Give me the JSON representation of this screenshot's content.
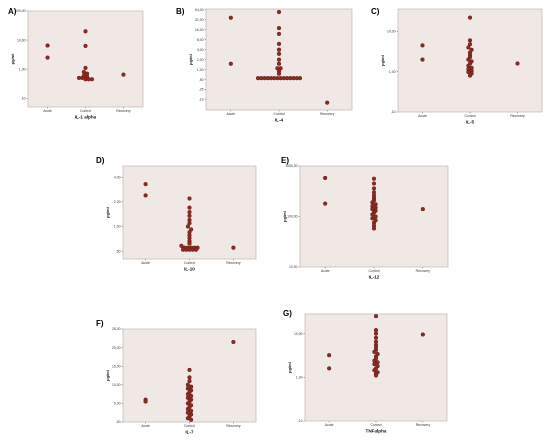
{
  "chart_data": [
    {
      "panel": "A)",
      "type": "scatter",
      "xlabel": "IL-1 alpha",
      "ylabel": "pg/ml",
      "categories": [
        "Acute",
        "Control",
        "Recovery"
      ],
      "y_scale": "log",
      "ylim": [
        0.05,
        100
      ],
      "y_ticks": [
        100,
        10,
        1,
        0.1
      ],
      "y_tick_labels": [
        "100,00",
        "10,00",
        "1,00",
        ",10"
      ],
      "points": [
        {
          "cat": "Acute",
          "values": [
            6.5,
            2.5
          ]
        },
        {
          "cat": "Control",
          "values": [
            20,
            6.3,
            1.1,
            0.8,
            0.7,
            0.6,
            0.55,
            0.5,
            0.5,
            0.45,
            0.45,
            0.45
          ]
        },
        {
          "cat": "Recovery",
          "values": [
            0.65
          ]
        }
      ]
    },
    {
      "panel": "B)",
      "type": "scatter",
      "xlabel": "IL-4",
      "ylabel": "pg/ml",
      "categories": [
        "Acute",
        "Control",
        "Recovery"
      ],
      "y_scale": "log",
      "ylim": [
        0.06,
        68
      ],
      "y_ticks": [
        64,
        32,
        16,
        8,
        4,
        2,
        1,
        0.5,
        0.25,
        0.125
      ],
      "y_tick_labels": [
        "64,00",
        "32,00",
        "16,00",
        "8,00",
        "4,00",
        "2,00",
        "1,00",
        ",50",
        ",25",
        ",13"
      ],
      "points": [
        {
          "cat": "Acute",
          "values": [
            37,
            1.5
          ]
        },
        {
          "cat": "Control",
          "values": [
            55,
            18,
            12,
            6,
            4,
            3,
            2,
            1.5,
            1.1,
            1.1,
            0.9,
            0.75,
            0.55,
            0.55,
            0.55,
            0.55,
            0.55,
            0.55,
            0.55,
            0.55,
            0.55,
            0.55,
            0.55,
            0.55,
            0.55,
            0.55
          ]
        },
        {
          "cat": "Recovery",
          "values": [
            0.1
          ]
        }
      ]
    },
    {
      "panel": "C)",
      "type": "scatter",
      "xlabel": "IL-5",
      "ylabel": "pg/ml",
      "categories": [
        "Acute",
        "Control",
        "Recovery"
      ],
      "y_scale": "log",
      "ylim": [
        0.1,
        36
      ],
      "y_ticks": [
        10,
        1,
        0.1
      ],
      "y_tick_labels": [
        "10,00",
        "1,00",
        ",10"
      ],
      "points": [
        {
          "cat": "Acute",
          "values": [
            4.5,
            2.0
          ]
        },
        {
          "cat": "Control",
          "values": [
            22,
            6.0,
            4.8,
            4.0,
            3.5,
            3.0,
            2.6,
            2.3,
            2.0,
            1.8,
            1.6,
            1.4,
            1.25,
            1.15,
            1.05,
            0.98,
            0.9,
            0.8
          ]
        },
        {
          "cat": "Recovery",
          "values": [
            1.6
          ]
        }
      ]
    },
    {
      "panel": "D)",
      "type": "scatter",
      "xlabel": "IL-10",
      "ylabel": "pg/ml",
      "categories": [
        "Acute",
        "Control",
        "Recovery"
      ],
      "y_scale": "log",
      "ylim": [
        0.4,
        5.5
      ],
      "y_ticks": [
        4,
        2,
        1,
        0.5
      ],
      "y_tick_labels": [
        "4,00",
        "2,00",
        "1,00",
        ",50"
      ],
      "points": [
        {
          "cat": "Acute",
          "values": [
            3.3,
            2.4
          ]
        },
        {
          "cat": "Control",
          "values": [
            2.2,
            1.7,
            1.5,
            1.35,
            1.2,
            1.1,
            1.0,
            0.92,
            0.85,
            0.78,
            0.72,
            0.66,
            0.62,
            0.58,
            0.55,
            0.55,
            0.55,
            0.55,
            0.55,
            0.52,
            0.52,
            0.52,
            0.52,
            0.52
          ]
        },
        {
          "cat": "Recovery",
          "values": [
            0.55
          ]
        }
      ]
    },
    {
      "panel": "E)",
      "type": "scatter",
      "xlabel": "IL-12",
      "ylabel": "pg/ml",
      "categories": [
        "Acute",
        "Control",
        "Recovery"
      ],
      "y_scale": "log",
      "ylim": [
        10,
        1000
      ],
      "y_ticks": [
        1000,
        100,
        10
      ],
      "y_tick_labels": [
        "1000,00",
        "100,00",
        "10,00"
      ],
      "points": [
        {
          "cat": "Acute",
          "values": [
            580,
            180
          ]
        },
        {
          "cat": "Control",
          "values": [
            560,
            450,
            360,
            300,
            260,
            230,
            210,
            190,
            175,
            160,
            150,
            140,
            130,
            120,
            110,
            100,
            92,
            84,
            75,
            66,
            58
          ]
        },
        {
          "cat": "Recovery",
          "values": [
            140
          ]
        }
      ]
    },
    {
      "panel": "F)",
      "type": "scatter",
      "xlabel": "IL-7",
      "ylabel": "pg/ml",
      "categories": [
        "Acute",
        "Control",
        "Recovery"
      ],
      "y_scale": "linear",
      "ylim": [
        0,
        25
      ],
      "y_ticks": [
        0,
        5,
        10,
        15,
        20,
        25
      ],
      "y_tick_labels": [
        ",00",
        "5,00",
        "10,00",
        "15,00",
        "20,00",
        "25,00"
      ],
      "points": [
        {
          "cat": "Acute",
          "values": [
            6.0,
            5.5
          ]
        },
        {
          "cat": "Control",
          "values": [
            14,
            12,
            11,
            10,
            9.5,
            9,
            8.5,
            8,
            7.5,
            7,
            6.5,
            6,
            5.5,
            5,
            4.5,
            4,
            3.5,
            3,
            2.5,
            2,
            1.5,
            1,
            0.6
          ]
        },
        {
          "cat": "Recovery",
          "values": [
            21.5
          ]
        }
      ]
    },
    {
      "panel": "G)",
      "type": "scatter",
      "xlabel": "TNFalpha",
      "ylabel": "pg/ml",
      "categories": [
        "Acute",
        "Control",
        "Recovery"
      ],
      "y_scale": "log",
      "ylim": [
        0.1,
        28
      ],
      "y_ticks": [
        10,
        1,
        0.1
      ],
      "y_tick_labels": [
        "10,00",
        "1,00",
        ",10"
      ],
      "points": [
        {
          "cat": "Acute",
          "values": [
            3.2,
            1.6
          ]
        },
        {
          "cat": "Control",
          "values": [
            25,
            12,
            10,
            8,
            6.5,
            5.5,
            4.8,
            4.2,
            3.8,
            3.4,
            3.0,
            2.7,
            2.4,
            2.2,
            2.0,
            1.8,
            1.6,
            1.45,
            1.3,
            1.2,
            1.1
          ]
        },
        {
          "cat": "Recovery",
          "values": [
            9.5
          ]
        }
      ]
    }
  ],
  "colors": {
    "marker_fill": "#8b2b22",
    "marker_stroke": "#5a1a14",
    "plot_bg": "#f0e8e4"
  }
}
